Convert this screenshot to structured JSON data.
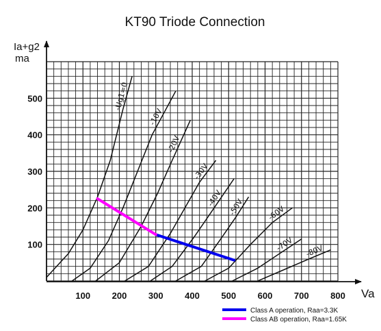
{
  "chart_data": {
    "type": "line",
    "title": "KT90 Triode Connection",
    "xlabel": "Va",
    "ylabel": [
      "Ia+g2",
      "ma"
    ],
    "xlim": [
      0,
      800
    ],
    "ylim": [
      0,
      600
    ],
    "xticks": [
      100,
      200,
      300,
      400,
      500,
      600,
      700,
      800
    ],
    "yticks": [
      100,
      200,
      300,
      400,
      500
    ],
    "grid": true,
    "curves": [
      {
        "label": "-Ug1=0",
        "points": [
          [
            0,
            10
          ],
          [
            60,
            75
          ],
          [
            100,
            140
          ],
          [
            140,
            230
          ],
          [
            175,
            330
          ],
          [
            210,
            470
          ],
          [
            235,
            560
          ]
        ]
      },
      {
        "label": "-10V",
        "points": [
          [
            70,
            0
          ],
          [
            120,
            35
          ],
          [
            170,
            110
          ],
          [
            210,
            200
          ],
          [
            250,
            300
          ],
          [
            290,
            400
          ],
          [
            355,
            520
          ]
        ]
      },
      {
        "label": "-20V",
        "points": [
          [
            135,
            0
          ],
          [
            200,
            50
          ],
          [
            260,
            150
          ],
          [
            305,
            240
          ],
          [
            345,
            330
          ],
          [
            395,
            440
          ]
        ]
      },
      {
        "label": "-30V",
        "points": [
          [
            215,
            0
          ],
          [
            280,
            40
          ],
          [
            340,
            130
          ],
          [
            380,
            200
          ],
          [
            420,
            270
          ],
          [
            465,
            330
          ]
        ]
      },
      {
        "label": "-40V",
        "points": [
          [
            285,
            0
          ],
          [
            345,
            40
          ],
          [
            405,
            120
          ],
          [
            450,
            185
          ],
          [
            515,
            280
          ]
        ]
      },
      {
        "label": "-50V",
        "points": [
          [
            355,
            0
          ],
          [
            425,
            40
          ],
          [
            475,
            110
          ],
          [
            520,
            175
          ],
          [
            555,
            230
          ]
        ]
      },
      {
        "label": "-60V",
        "points": [
          [
            435,
            0
          ],
          [
            500,
            35
          ],
          [
            560,
            100
          ],
          [
            620,
            160
          ],
          [
            675,
            200
          ]
        ]
      },
      {
        "label": "-70V",
        "points": [
          [
            510,
            0
          ],
          [
            580,
            35
          ],
          [
            640,
            75
          ],
          [
            700,
            115
          ]
        ]
      },
      {
        "label": "-80V",
        "points": [
          [
            580,
            0
          ],
          [
            650,
            30
          ],
          [
            720,
            60
          ],
          [
            780,
            85
          ]
        ]
      }
    ],
    "series": [
      {
        "name": "Class A operation, Raa=3.3K",
        "color": "#0000ee",
        "points": [
          [
            300,
            127
          ],
          [
            515,
            57
          ]
        ]
      },
      {
        "name": "Class AB operation, Raa=1.65K",
        "color": "#ff00ff",
        "points": [
          [
            140,
            225
          ],
          [
            300,
            127
          ]
        ]
      }
    ]
  }
}
